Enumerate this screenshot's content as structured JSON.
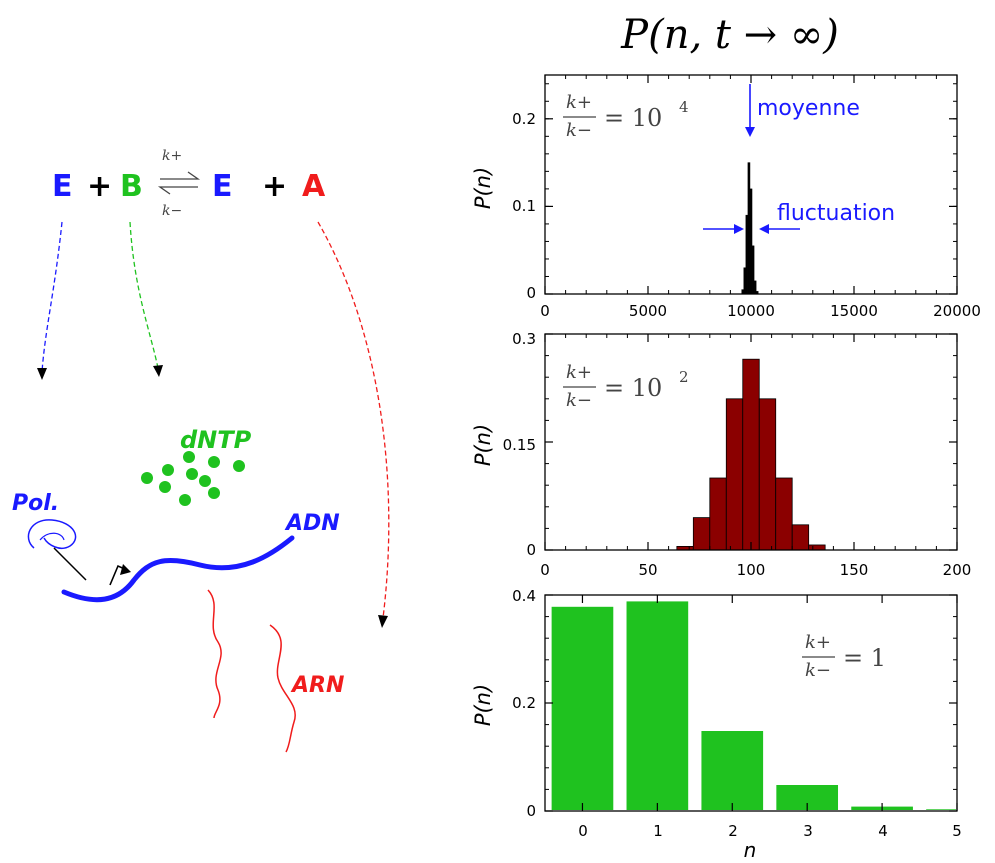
{
  "title": "P(n, t → ∞)",
  "reaction": {
    "E1": "E",
    "plus1": "+",
    "B": "B",
    "k_plus": "k+",
    "k_minus": "k−",
    "E2": "E",
    "plus2": "+",
    "A": "A"
  },
  "labels": {
    "dntp": "dNTP",
    "pol": "Pol.",
    "adn": "ADN",
    "arn": "ARN"
  },
  "colors": {
    "blue": "#1a1aff",
    "green": "#1fc21f",
    "red": "#f01c1c",
    "darkred": "#8b0000",
    "black": "#000000"
  },
  "annotations": {
    "moyenne": "moyenne",
    "fluctuation": "fluctuation"
  },
  "chart_data": [
    {
      "type": "bar",
      "ratio_label": {
        "num": "k+",
        "den": "k−",
        "rhs": "= 10",
        "exp": "4"
      },
      "ylabel": "P(n)",
      "xlim": [
        0,
        20000
      ],
      "ylim": [
        0,
        0.25
      ],
      "xticks": [
        "0",
        "5000",
        "10000",
        "15000",
        "20000"
      ],
      "yticks": [
        "0",
        "0.1",
        "0.2"
      ],
      "color": "#000000",
      "bin_width": 100,
      "x": [
        9600,
        9700,
        9800,
        9900,
        10000,
        10100,
        10200,
        10300
      ],
      "values": [
        0.005,
        0.03,
        0.09,
        0.15,
        0.12,
        0.055,
        0.015,
        0.003
      ]
    },
    {
      "type": "bar",
      "ratio_label": {
        "num": "k+",
        "den": "k−",
        "rhs": "= 10",
        "exp": "2"
      },
      "ylabel": "P(n)",
      "xlim": [
        0,
        200
      ],
      "ylim": [
        0,
        0.3
      ],
      "xticks": [
        "0",
        "50",
        "100",
        "150",
        "200"
      ],
      "yticks": [
        "0",
        "0.15",
        "0.3"
      ],
      "color": "#8b0000",
      "bin_width": 8,
      "x": [
        68,
        76,
        84,
        92,
        100,
        108,
        116,
        124,
        132
      ],
      "values": [
        0.005,
        0.045,
        0.1,
        0.21,
        0.265,
        0.21,
        0.1,
        0.035,
        0.007
      ]
    },
    {
      "type": "bar",
      "ratio_label": {
        "num": "k+",
        "den": "k−",
        "rhs": "= 1",
        "exp": ""
      },
      "ylabel": "P(n)",
      "xlabel": "n",
      "xlim": [
        -0.5,
        5
      ],
      "ylim": [
        0,
        0.4
      ],
      "xticks": [
        "0",
        "1",
        "2",
        "3",
        "4",
        "5"
      ],
      "yticks": [
        "0",
        "0.2",
        "0.4"
      ],
      "color": "#1fc21f",
      "bin_width": 0.85,
      "x": [
        0,
        1,
        2,
        3,
        4,
        5
      ],
      "values": [
        0.38,
        0.39,
        0.15,
        0.05,
        0.01,
        0.005
      ]
    }
  ]
}
